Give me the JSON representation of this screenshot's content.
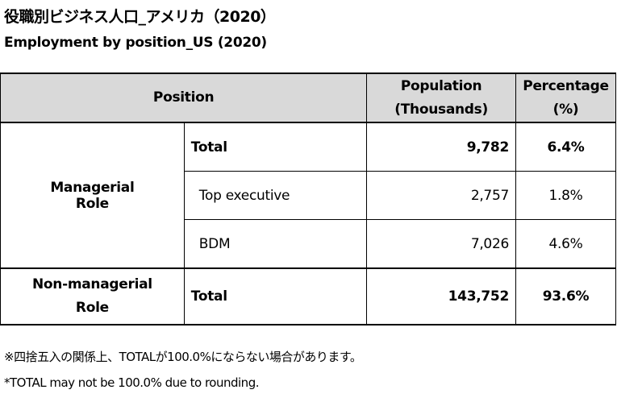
{
  "title_ja": "役職別ビジネス人口_アメリカ（2020）",
  "title_en": "Employment by position_US (2020)",
  "headers": {
    "position": "Position",
    "population": "Population (Thousands)",
    "percentage": "Percentage (%)"
  },
  "groups": [
    {
      "label": "Managerial Role",
      "rows": [
        {
          "name": "Total",
          "population": "9,782",
          "percentage": "6.4%"
        },
        {
          "name": "Top executive",
          "population": "2,757",
          "percentage": "1.8%"
        },
        {
          "name": "BDM",
          "population": "7,026",
          "percentage": "4.6%"
        }
      ]
    },
    {
      "label": "Non-managerial Role",
      "rows": [
        {
          "name": "Total",
          "population": "143,752",
          "percentage": "93.6%"
        }
      ]
    }
  ],
  "note_ja": "※四捨五入の関係上、TOTALが100.0%にならない場合があります。",
  "note_en": "*TOTAL may not be 100.0% due to rounding."
}
